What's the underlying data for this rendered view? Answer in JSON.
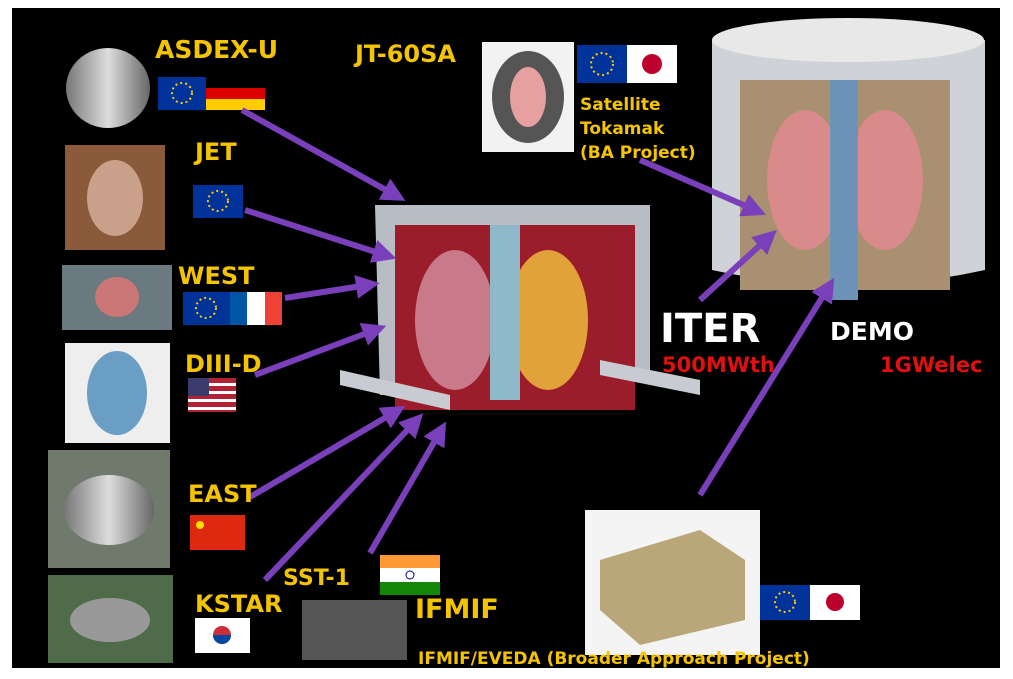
{
  "devices": [
    {
      "name": "ASDEX-U"
    },
    {
      "name": "JET"
    },
    {
      "name": "WEST"
    },
    {
      "name": "DIII-D"
    },
    {
      "name": "EAST"
    },
    {
      "name": "KSTAR"
    },
    {
      "name": "SST-1"
    },
    {
      "name": "JT-60SA"
    }
  ],
  "jt60sa_note": [
    "Satellite",
    "Tokamak",
    "(BA Project)"
  ],
  "iter": {
    "name": "ITER",
    "power": "500MWth"
  },
  "demo": {
    "name": "DEMO",
    "power": "1GWelec"
  },
  "ifmif": {
    "name": "IFMIF",
    "note": "IFMIF/EVEDA (Broader Approach Project)"
  }
}
